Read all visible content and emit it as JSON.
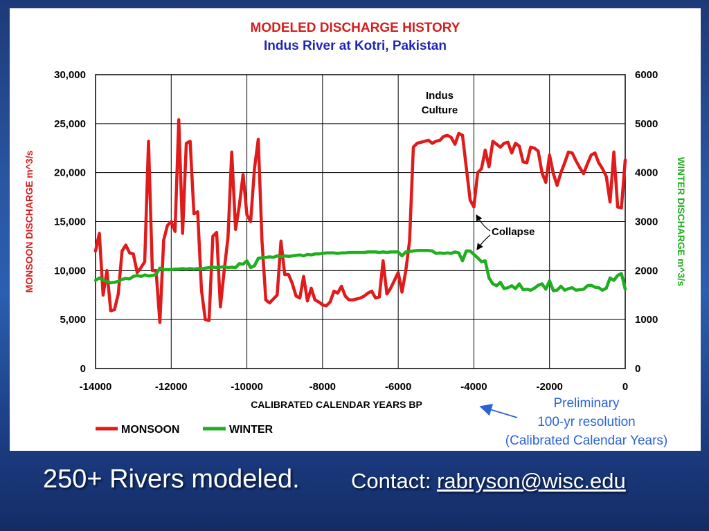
{
  "chart_data": {
    "type": "line",
    "title": "MODELED DISCHARGE HISTORY",
    "subtitle": "Indus River at Kotri, Pakistan",
    "xlabel": "CALIBRATED CALENDAR YEARS BP",
    "ylabel_left": "MONSOON DISCHARGE m^3/s",
    "ylabel_right": "WINTER DISCHARGE m^3/s",
    "xlim": [
      -14000,
      0
    ],
    "ylim_left": [
      0,
      30000
    ],
    "ylim_right": [
      0,
      6000
    ],
    "x_ticks": [
      "-14000",
      "-12000",
      "-10000",
      "-8000",
      "-6000",
      "-4000",
      "-2000",
      "0"
    ],
    "y_ticks_left": [
      "0",
      "5,000",
      "10,000",
      "15,000",
      "20,000",
      "25,000",
      "30,000"
    ],
    "y_ticks_right": [
      "0",
      "1000",
      "2000",
      "3000",
      "4000",
      "5000",
      "6000"
    ],
    "grid": true,
    "legend": "bottom-left",
    "series": [
      {
        "name": "MONSOON",
        "axis": "left",
        "color": "#e01b1b",
        "x": [
          -14000,
          -13900,
          -13800,
          -13700,
          -13600,
          -13500,
          -13400,
          -13300,
          -13200,
          -13100,
          -13000,
          -12900,
          -12800,
          -12700,
          -12600,
          -12500,
          -12400,
          -12300,
          -12200,
          -12100,
          -12000,
          -11900,
          -11800,
          -11700,
          -11600,
          -11500,
          -11400,
          -11300,
          -11200,
          -11100,
          -11000,
          -10900,
          -10800,
          -10700,
          -10600,
          -10500,
          -10400,
          -10300,
          -10200,
          -10100,
          -10000,
          -9900,
          -9800,
          -9700,
          -9600,
          -9500,
          -9400,
          -9300,
          -9200,
          -9100,
          -9000,
          -8900,
          -8800,
          -8700,
          -8600,
          -8500,
          -8400,
          -8300,
          -8200,
          -8100,
          -8000,
          -7900,
          -7800,
          -7700,
          -7600,
          -7500,
          -7400,
          -7300,
          -7200,
          -7100,
          -7000,
          -6900,
          -6800,
          -6700,
          -6600,
          -6500,
          -6400,
          -6300,
          -6200,
          -6100,
          -6000,
          -5900,
          -5800,
          -5700,
          -5600,
          -5500,
          -5400,
          -5300,
          -5200,
          -5100,
          -5000,
          -4900,
          -4800,
          -4700,
          -4600,
          -4500,
          -4400,
          -4300,
          -4200,
          -4100,
          -4000,
          -3900,
          -3800,
          -3700,
          -3600,
          -3500,
          -3400,
          -3300,
          -3200,
          -3100,
          -3000,
          -2900,
          -2800,
          -2700,
          -2600,
          -2500,
          -2400,
          -2300,
          -2200,
          -2100,
          -2000,
          -1900,
          -1800,
          -1700,
          -1600,
          -1500,
          -1400,
          -1300,
          -1200,
          -1100,
          -1000,
          -900,
          -800,
          -700,
          -600,
          -500,
          -400,
          -300,
          -200,
          -100,
          0
        ],
        "values": [
          12000,
          13800,
          7500,
          10000,
          5900,
          6000,
          7600,
          12000,
          12600,
          11800,
          11700,
          9800,
          10300,
          10900,
          23200,
          10000,
          10000,
          4700,
          13100,
          14600,
          15000,
          14000,
          25400,
          13800,
          23000,
          23200,
          15800,
          16000,
          8000,
          5000,
          4900,
          13500,
          13900,
          6300,
          10000,
          13400,
          22100,
          14200,
          16600,
          19800,
          15700,
          15000,
          20400,
          23400,
          13000,
          7000,
          6700,
          7100,
          7500,
          13000,
          9600,
          9600,
          8700,
          7400,
          7200,
          9400,
          6900,
          8200,
          7000,
          6800,
          6500,
          6400,
          6800,
          7900,
          7700,
          8400,
          7400,
          7000,
          7000,
          7100,
          7200,
          7400,
          7700,
          7900,
          7200,
          7300,
          11000,
          7600,
          8200,
          9000,
          9800,
          7800,
          10000,
          13000,
          22600,
          23000,
          23100,
          23200,
          23300,
          23000,
          23200,
          23300,
          23700,
          23800,
          23600,
          22900,
          24000,
          23800,
          20500,
          17200,
          16500,
          20000,
          20400,
          22300,
          20600,
          23200,
          22900,
          22600,
          23000,
          23100,
          22000,
          23000,
          22700,
          21100,
          21000,
          22600,
          22500,
          22200,
          20000,
          19000,
          21800,
          19900,
          18700,
          20000,
          21000,
          22100,
          22000,
          21200,
          20500,
          19900,
          20900,
          21800,
          22000,
          21000,
          20400,
          19600,
          17000,
          22100,
          16500,
          16400,
          21300
        ]
      },
      {
        "name": "WINTER",
        "axis": "right",
        "color": "#1fae1f",
        "x": [
          -14000,
          -13900,
          -13800,
          -13700,
          -13600,
          -13500,
          -13400,
          -13300,
          -13200,
          -13100,
          -13000,
          -12900,
          -12800,
          -12700,
          -12600,
          -12500,
          -12400,
          -12300,
          -12200,
          -12100,
          -12000,
          -11900,
          -11800,
          -11700,
          -11600,
          -11500,
          -11400,
          -11300,
          -11200,
          -11100,
          -11000,
          -10900,
          -10800,
          -10700,
          -10600,
          -10500,
          -10400,
          -10300,
          -10200,
          -10100,
          -10000,
          -9900,
          -9800,
          -9700,
          -9600,
          -9500,
          -9400,
          -9300,
          -9200,
          -9100,
          -9000,
          -8900,
          -8800,
          -8700,
          -8600,
          -8500,
          -8400,
          -8300,
          -8200,
          -8100,
          -8000,
          -7900,
          -7800,
          -7700,
          -7600,
          -7500,
          -7400,
          -7300,
          -7200,
          -7100,
          -7000,
          -6900,
          -6800,
          -6700,
          -6600,
          -6500,
          -6400,
          -6300,
          -6200,
          -6100,
          -6000,
          -5900,
          -5800,
          -5700,
          -5600,
          -5500,
          -5400,
          -5300,
          -5200,
          -5100,
          -5000,
          -4900,
          -4800,
          -4700,
          -4600,
          -4500,
          -4400,
          -4300,
          -4200,
          -4100,
          -4000,
          -3900,
          -3800,
          -3700,
          -3600,
          -3500,
          -3400,
          -3300,
          -3200,
          -3100,
          -3000,
          -2900,
          -2800,
          -2700,
          -2600,
          -2500,
          -2400,
          -2300,
          -2200,
          -2100,
          -2000,
          -1900,
          -1800,
          -1700,
          -1600,
          -1500,
          -1400,
          -1300,
          -1200,
          -1100,
          -1000,
          -900,
          -800,
          -700,
          -600,
          -500,
          -400,
          -300,
          -200,
          -100,
          0
        ],
        "values": [
          1800,
          1850,
          1800,
          1780,
          1750,
          1760,
          1780,
          1820,
          1840,
          1830,
          1880,
          1900,
          1880,
          1910,
          1890,
          1900,
          1920,
          2050,
          2020,
          2020,
          2020,
          2030,
          2030,
          2040,
          2030,
          2040,
          2030,
          2040,
          2030,
          2050,
          2060,
          2070,
          2060,
          2070,
          2080,
          2060,
          2070,
          2060,
          2140,
          2130,
          2200,
          2060,
          2100,
          2250,
          2260,
          2270,
          2280,
          2270,
          2300,
          2280,
          2300,
          2290,
          2300,
          2310,
          2320,
          2300,
          2330,
          2320,
          2340,
          2340,
          2350,
          2360,
          2360,
          2360,
          2350,
          2360,
          2360,
          2370,
          2370,
          2370,
          2370,
          2370,
          2380,
          2380,
          2380,
          2370,
          2380,
          2370,
          2380,
          2380,
          2380,
          2300,
          2380,
          2390,
          2400,
          2410,
          2410,
          2410,
          2410,
          2400,
          2350,
          2360,
          2350,
          2360,
          2350,
          2380,
          2360,
          2200,
          2400,
          2400,
          2330,
          2260,
          2180,
          2200,
          1850,
          1730,
          1690,
          1760,
          1630,
          1650,
          1690,
          1630,
          1730,
          1610,
          1620,
          1600,
          1640,
          1700,
          1730,
          1620,
          1790,
          1590,
          1600,
          1680,
          1600,
          1630,
          1650,
          1600,
          1610,
          1620,
          1690,
          1700,
          1660,
          1650,
          1600,
          1640,
          1850,
          1800,
          1900,
          1940,
          1620
        ]
      }
    ],
    "annotations": {
      "indus_culture_line1": "Indus",
      "indus_culture_line2": "Culture",
      "collapse": "Collapse"
    }
  },
  "notes": {
    "line1": "Preliminary",
    "line2": "100-yr resolution",
    "line3": "(Calibrated Calendar Years)"
  },
  "footer": {
    "left_text": "250+ Rivers modeled.",
    "contact_label": "Contact: ",
    "contact_email": "rabryson@wisc.edu"
  }
}
